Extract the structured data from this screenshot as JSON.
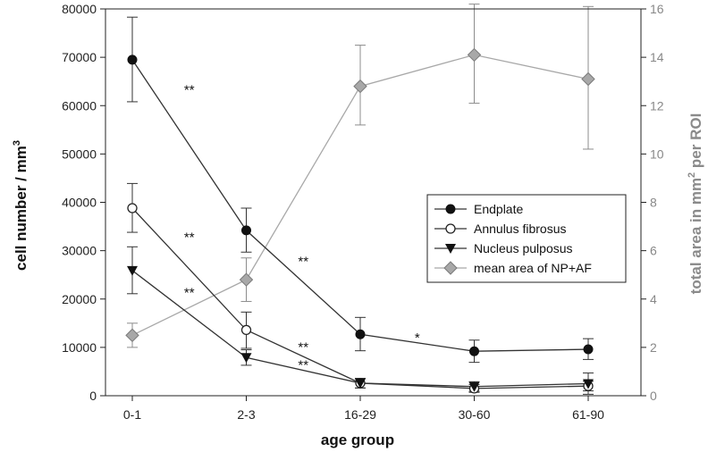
{
  "chart_data": {
    "type": "line",
    "categories": [
      "0-1",
      "2-3",
      "16-29",
      "30-60",
      "61-90"
    ],
    "xlabel": "age group",
    "ylabel": "cell number / mm",
    "ylabel_superscript": "3",
    "ylabel_right_parts": [
      "total area in mm",
      "2",
      " per ROI"
    ],
    "ylim": [
      0,
      80000
    ],
    "yticks": [
      0,
      10000,
      20000,
      30000,
      40000,
      50000,
      60000,
      70000,
      80000
    ],
    "ylim_right": [
      0,
      16
    ],
    "yticks_right": [
      0,
      2,
      4,
      6,
      8,
      10,
      12,
      14,
      16
    ],
    "grid": false,
    "legend_position": "center-right",
    "series": [
      {
        "name": "Endplate",
        "axis": "left",
        "marker": "filled-circle",
        "color": "#111111",
        "values": [
          69500,
          34200,
          12700,
          9200,
          9600
        ],
        "err": [
          [
            60800,
            78300
          ],
          [
            29700,
            38800
          ],
          [
            9300,
            16200
          ],
          [
            6900,
            11500
          ],
          [
            7500,
            11800
          ]
        ]
      },
      {
        "name": "Annulus fibrosus",
        "axis": "left",
        "marker": "open-circle",
        "color": "#333333",
        "values": [
          38800,
          13600,
          2600,
          1500,
          2000
        ],
        "err": [
          [
            33800,
            43900
          ],
          [
            9800,
            17300
          ],
          [
            1600,
            3600
          ],
          [
            700,
            2300
          ],
          [
            1000,
            3000
          ]
        ]
      },
      {
        "name": "Nucleus pulposus",
        "axis": "left",
        "marker": "filled-triangle-down",
        "color": "#111111",
        "values": [
          25900,
          7900,
          2600,
          1900,
          2500
        ],
        "err": [
          [
            21100,
            30800
          ],
          [
            6300,
            9500
          ],
          [
            1600,
            3600
          ],
          [
            900,
            2900
          ],
          [
            300,
            4700
          ]
        ]
      },
      {
        "name": "mean area of NP+AF",
        "axis": "right",
        "marker": "diamond",
        "color": "#a8a8a8",
        "values": [
          2.5,
          4.8,
          12.8,
          14.1,
          13.1
        ],
        "err": [
          [
            2.0,
            3.0
          ],
          [
            3.9,
            5.7
          ],
          [
            11.2,
            14.5
          ],
          [
            12.1,
            16.2
          ],
          [
            10.2,
            16.1
          ]
        ]
      }
    ],
    "annotations": [
      {
        "text": "**",
        "x": 0.5,
        "y": 63500
      },
      {
        "text": "**",
        "x": 0.5,
        "y": 33000
      },
      {
        "text": "**",
        "x": 0.5,
        "y": 21500
      },
      {
        "text": "**",
        "x": 1.5,
        "y": 28000
      },
      {
        "text": "**",
        "x": 1.5,
        "y": 10300
      },
      {
        "text": "**",
        "x": 1.5,
        "y": 6600
      },
      {
        "text": "*",
        "x": 2.5,
        "y": 12200
      }
    ]
  }
}
